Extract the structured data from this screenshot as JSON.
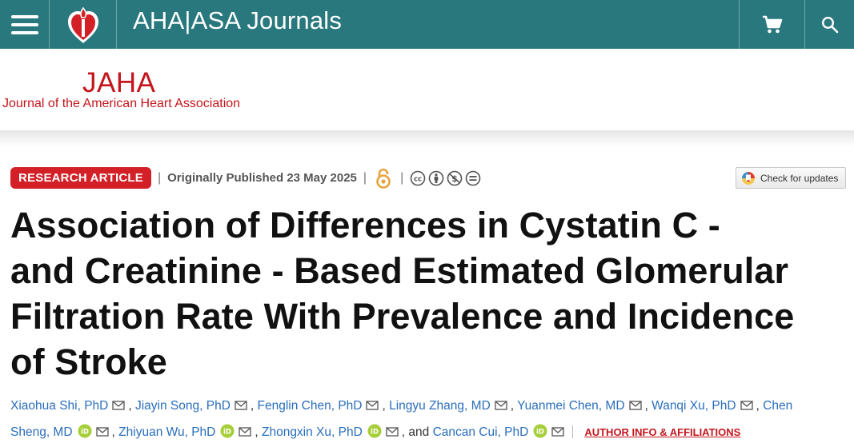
{
  "header": {
    "brand": "AHA|ASA Journals"
  },
  "journal": {
    "abbrev": "JAHA",
    "full_name": "Journal of the American Heart Association"
  },
  "article_meta": {
    "type_badge": "RESEARCH ARTICLE",
    "separator": "|",
    "published": "Originally Published 23 May 2025",
    "check_updates": "Check for updates"
  },
  "title": {
    "line1": "Association of Differences in Cystatin C ‐",
    "line2": "and Creatinine ‐ Based Estimated Glomerular",
    "line3": "Filtration Rate With Prevalence and Incidence",
    "line4": "of Stroke"
  },
  "authors": {
    "a1": "Xiaohua Shi, PhD",
    "a2": "Jiayin Song, PhD",
    "a3": "Fenglin Chen, PhD",
    "a4": "Lingyu Zhang, MD",
    "a5": "Yuanmei Chen, MD",
    "a6": "Wanqi Xu, PhD",
    "a7a": "Chen",
    "a7b": "Sheng, MD",
    "a8": "Zhiyuan Wu, PhD",
    "a9": "Zhongxin Xu, PhD",
    "a10": "Cancan Cui, PhD",
    "comma": ",",
    "and_text": ", and",
    "affiliations_link": "AUTHOR INFO & AFFILIATIONS"
  },
  "icons": {
    "menu": "hamburger-menu-icon",
    "logo": "heart-torch-logo",
    "cart": "shopping-cart-icon",
    "search": "search-icon",
    "open_access": "open-access-icon",
    "cc": [
      "cc-icon",
      "by-icon",
      "nc-icon",
      "nd-icon"
    ],
    "mail": "envelope-icon",
    "orcid": "orcid-icon"
  },
  "colors": {
    "header_bg": "#29787e",
    "brand_red": "#c4161c",
    "badge_red": "#d32027",
    "author_link": "#2a6ebb",
    "orcid_green": "#a6ce39"
  }
}
